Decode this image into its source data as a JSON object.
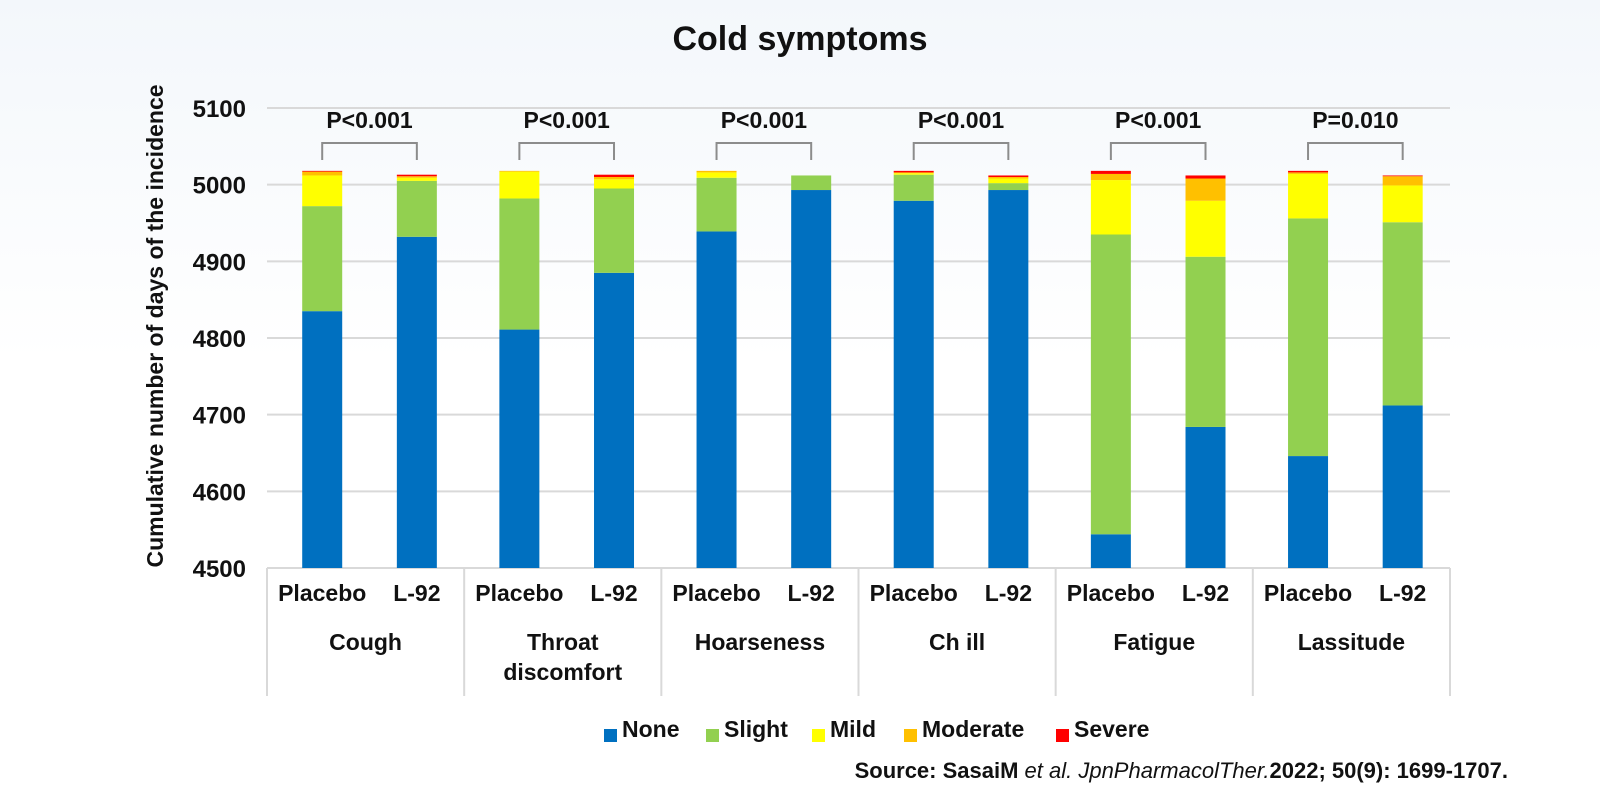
{
  "chart_data": {
    "type": "bar",
    "stacked": true,
    "title": "Cold symptoms",
    "ylabel": "Cumulative number of days of the incidence",
    "xlabel": "",
    "ylim": [
      4500,
      5100
    ],
    "yticks": [
      4500,
      4600,
      4700,
      4800,
      4900,
      5000,
      5100
    ],
    "grid": true,
    "legend_position": "bottom",
    "colors": {
      "None": "#0070c0",
      "Slight": "#92d050",
      "Mild": "#ffff00",
      "Moderate": "#ffc000",
      "Severe": "#ff0000"
    },
    "series_names": [
      "None",
      "Slight",
      "Mild",
      "Moderate",
      "Severe"
    ],
    "groups": [
      {
        "name": "Cough",
        "p_value": "P<0.001",
        "bars": [
          {
            "label": "Placebo",
            "values": {
              "None": 4835,
              "Slight": 137,
              "Mild": 40,
              "Moderate": 5,
              "Severe": 1
            }
          },
          {
            "label": "L-92",
            "values": {
              "None": 4932,
              "Slight": 73,
              "Mild": 4,
              "Moderate": 2,
              "Severe": 2
            }
          }
        ]
      },
      {
        "name": "Throat\ndiscomfort",
        "p_value": "P<0.001",
        "bars": [
          {
            "label": "Placebo",
            "values": {
              "None": 4811,
              "Slight": 171,
              "Mild": 35,
              "Moderate": 1,
              "Severe": 0
            }
          },
          {
            "label": "L-92",
            "values": {
              "None": 4885,
              "Slight": 110,
              "Mild": 12,
              "Moderate": 3,
              "Severe": 3
            }
          }
        ]
      },
      {
        "name": "Hoarseness",
        "p_value": "P<0.001",
        "bars": [
          {
            "label": "Placebo",
            "values": {
              "None": 4939,
              "Slight": 70,
              "Mild": 7,
              "Moderate": 2,
              "Severe": 0
            }
          },
          {
            "label": "L-92",
            "values": {
              "None": 4993,
              "Slight": 19,
              "Mild": 0,
              "Moderate": 0,
              "Severe": 0
            }
          }
        ]
      },
      {
        "name": "Ch ill",
        "p_value": "P<0.001",
        "bars": [
          {
            "label": "Placebo",
            "values": {
              "None": 4979,
              "Slight": 34,
              "Mild": 2,
              "Moderate": 1,
              "Severe": 2
            }
          },
          {
            "label": "L-92",
            "values": {
              "None": 4993,
              "Slight": 9,
              "Mild": 6,
              "Moderate": 2,
              "Severe": 2
            }
          }
        ]
      },
      {
        "name": "Fatigue",
        "p_value": "P<0.001",
        "bars": [
          {
            "label": "Placebo",
            "values": {
              "None": 4544,
              "Slight": 391,
              "Mild": 71,
              "Moderate": 8,
              "Severe": 4
            }
          },
          {
            "label": "L-92",
            "values": {
              "None": 4684,
              "Slight": 222,
              "Mild": 73,
              "Moderate": 29,
              "Severe": 4
            }
          }
        ]
      },
      {
        "name": "Lassitude",
        "p_value": "P=0.010",
        "bars": [
          {
            "label": "Placebo",
            "values": {
              "None": 4646,
              "Slight": 310,
              "Mild": 58,
              "Moderate": 2,
              "Severe": 2
            }
          },
          {
            "label": "L-92",
            "values": {
              "None": 4712,
              "Slight": 239,
              "Mild": 48,
              "Moderate": 12,
              "Severe": 1
            }
          }
        ]
      }
    ]
  },
  "source": {
    "prefix": "Source: SasaiM ",
    "italic": "et al. JpnPharmacolTher.",
    "suffix": "2022; 50(9): 1699-1707."
  }
}
